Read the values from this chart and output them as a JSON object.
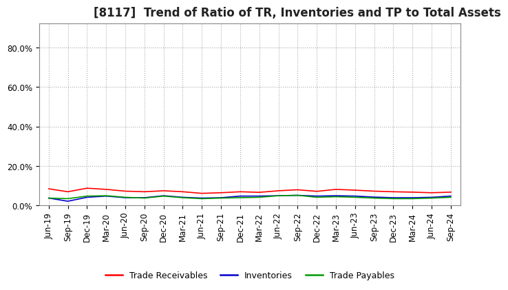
{
  "title": "[8117]  Trend of Ratio of TR, Inventories and TP to Total Assets",
  "ylim": [
    0.0,
    0.92
  ],
  "yticks": [
    0.0,
    0.2,
    0.4,
    0.6,
    0.8
  ],
  "ytick_labels": [
    "0.0%",
    "20.0%",
    "40.0%",
    "60.0%",
    "80.0%"
  ],
  "legend": [
    "Trade Receivables",
    "Inventories",
    "Trade Payables"
  ],
  "legend_colors": [
    "#ff0000",
    "#0000cc",
    "#009900"
  ],
  "dates": [
    "Jun-19",
    "Sep-19",
    "Dec-19",
    "Mar-20",
    "Jun-20",
    "Sep-20",
    "Dec-20",
    "Mar-21",
    "Jun-21",
    "Sep-21",
    "Dec-21",
    "Mar-22",
    "Jun-22",
    "Sep-22",
    "Dec-22",
    "Mar-23",
    "Jun-23",
    "Sep-23",
    "Dec-23",
    "Mar-24",
    "Jun-24",
    "Sep-24"
  ],
  "trade_receivables": [
    0.085,
    0.07,
    0.088,
    0.082,
    0.073,
    0.07,
    0.075,
    0.07,
    0.062,
    0.065,
    0.07,
    0.067,
    0.075,
    0.08,
    0.072,
    0.082,
    0.078,
    0.073,
    0.07,
    0.068,
    0.065,
    0.068
  ],
  "inventories": [
    0.038,
    0.022,
    0.042,
    0.048,
    0.04,
    0.04,
    0.05,
    0.042,
    0.038,
    0.04,
    0.048,
    0.048,
    0.05,
    0.052,
    0.048,
    0.05,
    0.048,
    0.043,
    0.04,
    0.04,
    0.042,
    0.048
  ],
  "trade_payables": [
    0.038,
    0.035,
    0.048,
    0.05,
    0.042,
    0.038,
    0.048,
    0.04,
    0.035,
    0.038,
    0.04,
    0.042,
    0.05,
    0.052,
    0.042,
    0.045,
    0.042,
    0.038,
    0.035,
    0.035,
    0.038,
    0.042
  ],
  "grid_color": "#aaaaaa",
  "background_color": "#ffffff",
  "title_fontsize": 12,
  "tick_fontsize": 8.5,
  "legend_fontsize": 9
}
